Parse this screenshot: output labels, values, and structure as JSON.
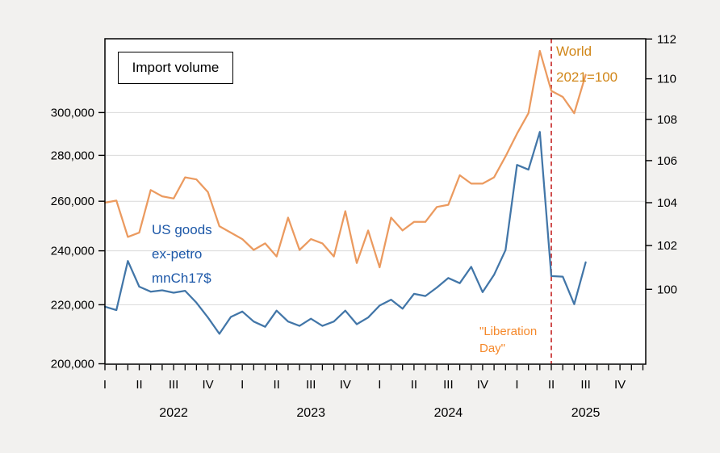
{
  "title_box": {
    "label": "Import volume"
  },
  "left_annotation": {
    "lines": [
      "US goods",
      "ex-petro",
      "mnCh17$"
    ],
    "color": "#1d58a8"
  },
  "right_annotation": {
    "lines": [
      "World",
      "2021=100"
    ],
    "color": "#d1871a"
  },
  "event_annotation": {
    "lines": [
      "\"Liberation",
      "Day\""
    ],
    "color": "#f5882a"
  },
  "chart_data": {
    "type": "line",
    "title": "Import volume",
    "x_unit": "month",
    "categories": [
      "2022-01",
      "2022-02",
      "2022-03",
      "2022-04",
      "2022-05",
      "2022-06",
      "2022-07",
      "2022-08",
      "2022-09",
      "2022-10",
      "2022-11",
      "2022-12",
      "2023-01",
      "2023-02",
      "2023-03",
      "2023-04",
      "2023-05",
      "2023-06",
      "2023-07",
      "2023-08",
      "2023-09",
      "2023-10",
      "2023-11",
      "2023-12",
      "2024-01",
      "2024-02",
      "2024-03",
      "2024-04",
      "2024-05",
      "2024-06",
      "2024-07",
      "2024-08",
      "2024-09",
      "2024-10",
      "2024-11",
      "2024-12",
      "2025-01",
      "2025-02",
      "2025-03",
      "2025-04",
      "2025-05",
      "2025-06",
      "2025-07"
    ],
    "series": [
      {
        "name": "US goods ex-petro mnCh17$",
        "axis": "left",
        "color": "#4276a8",
        "values": [
          219300,
          218100,
          236100,
          226500,
          224700,
          225200,
          224300,
          225000,
          220700,
          215500,
          209900,
          215700,
          217600,
          214100,
          212300,
          217900,
          214100,
          212600,
          215100,
          212600,
          214100,
          217900,
          213200,
          215500,
          219700,
          221800,
          218600,
          223900,
          223100,
          226200,
          229700,
          227800,
          233900,
          224500,
          230900,
          240300,
          275700,
          273600,
          290800,
          230400,
          230200,
          220200,
          235600
        ]
      },
      {
        "name": "World import volume, 2021=100",
        "axis": "right",
        "color": "#eb9a5f",
        "values": [
          104.0,
          104.1,
          102.4,
          102.6,
          104.6,
          104.3,
          104.2,
          105.2,
          105.1,
          104.5,
          102.9,
          102.6,
          102.3,
          101.8,
          102.1,
          101.5,
          103.3,
          101.8,
          102.3,
          102.1,
          101.5,
          103.6,
          101.2,
          102.7,
          101.0,
          103.3,
          102.7,
          103.1,
          103.1,
          103.8,
          103.9,
          105.3,
          104.9,
          104.9,
          105.2,
          106.2,
          107.3,
          108.3,
          111.4,
          109.4,
          109.1,
          108.3,
          110.2
        ]
      }
    ],
    "left_axis": {
      "scale": "log",
      "tick_values": [
        200000,
        220000,
        240000,
        260000,
        280000,
        300000
      ],
      "tick_labels": [
        "200,000",
        "220,000",
        "240,000",
        "260,000",
        "280,000",
        "300,000"
      ]
    },
    "right_axis": {
      "scale": "log",
      "tick_values": [
        100,
        102,
        104,
        106,
        108,
        110,
        112
      ],
      "tick_labels": [
        "100",
        "102",
        "104",
        "106",
        "108",
        "110",
        "112"
      ]
    },
    "x_axis": {
      "quarter_labels": [
        "I",
        "II",
        "III",
        "IV",
        "I",
        "II",
        "III",
        "IV",
        "I",
        "II",
        "III",
        "IV",
        "I",
        "II",
        "III",
        "IV"
      ],
      "year_labels": [
        "2022",
        "2023",
        "2024",
        "2025"
      ]
    },
    "event_line": {
      "x_month": "2025-04",
      "label": "\"Liberation Day\"",
      "color": "#c42222",
      "style": "dashed"
    },
    "grid": true,
    "legend_position": "annotations-on-chart",
    "colors": {
      "background": "#f2f1ef",
      "plot_background": "#ffffff",
      "gridline": "#d9d9d9",
      "border": "#000000"
    }
  }
}
